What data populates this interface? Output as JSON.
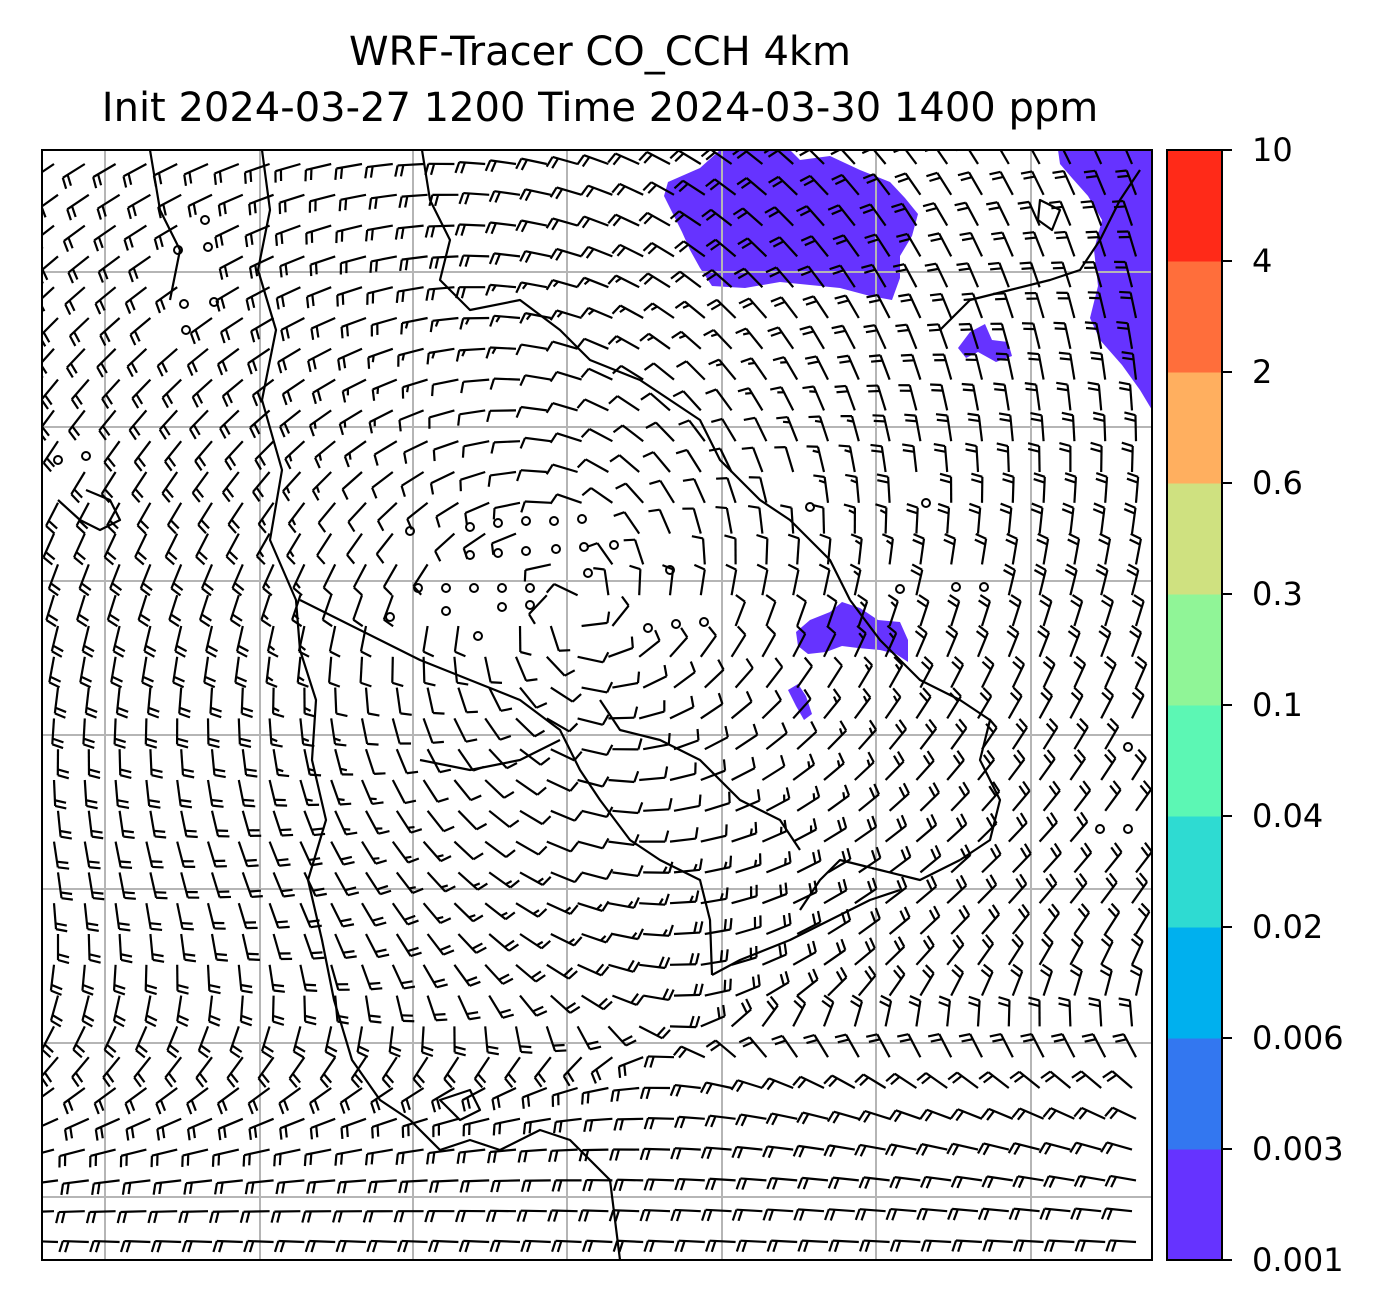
{
  "title": {
    "line1": "WRF-Tracer CO_CCH 4km",
    "line2": "Init 2024-03-27 1200 Time 2024-03-30 1400 ppm"
  },
  "colorbar": {
    "levels": [
      "0.001",
      "0.003",
      "0.006",
      "0.02",
      "0.04",
      "0.1",
      "0.3",
      "0.6",
      "2",
      "4",
      "10"
    ],
    "colors": [
      "#6633ff",
      "#3377f0",
      "#00b0ee",
      "#2edbd2",
      "#5cf7b4",
      "#90f597",
      "#cfe180",
      "#ffaf5f",
      "#ff6e3b",
      "#ff2a18"
    ]
  },
  "map": {
    "plume_color": "#6633ff",
    "gridline_color": "#b5b5b5",
    "symbols": [
      "wind-barb",
      "calm-circle",
      "coastline"
    ]
  }
}
